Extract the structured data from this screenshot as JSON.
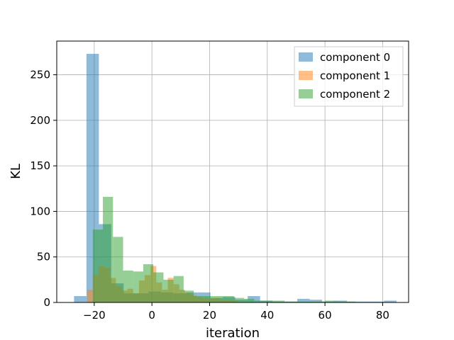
{
  "chart_data": {
    "type": "histogram",
    "xlabel": "iteration",
    "ylabel": "KL",
    "xlim": [
      -33,
      89
    ],
    "ylim": [
      0,
      287
    ],
    "x_ticks": [
      -20,
      0,
      20,
      40,
      60,
      80
    ],
    "y_ticks": [
      0,
      50,
      100,
      150,
      200,
      250
    ],
    "grid": true,
    "legend_position": "top-right",
    "series": [
      {
        "name": "component 0",
        "color": "#1f77b4",
        "opacity": 0.5,
        "bins": [
          {
            "x0": -27,
            "x1": -22.7,
            "count": 7
          },
          {
            "x0": -22.7,
            "x1": -18.4,
            "count": 273
          },
          {
            "x0": -18.4,
            "x1": -14.1,
            "count": 86
          },
          {
            "x0": -14.1,
            "x1": -9.8,
            "count": 21
          },
          {
            "x0": -9.8,
            "x1": -5.5,
            "count": 10
          },
          {
            "x0": -5.5,
            "x1": -1.2,
            "count": 10
          },
          {
            "x0": -1.2,
            "x1": 3.1,
            "count": 12
          },
          {
            "x0": 3.1,
            "x1": 7.4,
            "count": 11
          },
          {
            "x0": 7.4,
            "x1": 11.7,
            "count": 10
          },
          {
            "x0": 11.7,
            "x1": 16.0,
            "count": 11
          },
          {
            "x0": 16.0,
            "x1": 20.3,
            "count": 11
          },
          {
            "x0": 20.3,
            "x1": 24.6,
            "count": 5
          },
          {
            "x0": 24.6,
            "x1": 28.9,
            "count": 6
          },
          {
            "x0": 28.9,
            "x1": 33.2,
            "count": 3
          },
          {
            "x0": 33.2,
            "x1": 37.5,
            "count": 7
          },
          {
            "x0": 37.5,
            "x1": 41.8,
            "count": 2
          },
          {
            "x0": 41.8,
            "x1": 46.1,
            "count": 1
          },
          {
            "x0": 46.1,
            "x1": 50.4,
            "count": 1
          },
          {
            "x0": 50.4,
            "x1": 54.7,
            "count": 4
          },
          {
            "x0": 54.7,
            "x1": 59.0,
            "count": 3
          },
          {
            "x0": 59.0,
            "x1": 63.3,
            "count": 1
          },
          {
            "x0": 63.3,
            "x1": 67.6,
            "count": 2
          },
          {
            "x0": 67.6,
            "x1": 71.9,
            "count": 1
          },
          {
            "x0": 71.9,
            "x1": 76.2,
            "count": 1
          },
          {
            "x0": 76.2,
            "x1": 80.5,
            "count": 1
          },
          {
            "x0": 80.5,
            "x1": 84.8,
            "count": 2
          }
        ]
      },
      {
        "name": "component 1",
        "color": "#ff7f0e",
        "opacity": 0.5,
        "bins": [
          {
            "x0": -22.5,
            "x1": -20.5,
            "count": 14
          },
          {
            "x0": -20.5,
            "x1": -18.5,
            "count": 30
          },
          {
            "x0": -18.5,
            "x1": -16.5,
            "count": 40
          },
          {
            "x0": -16.5,
            "x1": -14.5,
            "count": 38
          },
          {
            "x0": -14.5,
            "x1": -12.5,
            "count": 27
          },
          {
            "x0": -12.5,
            "x1": -10.5,
            "count": 18
          },
          {
            "x0": -10.5,
            "x1": -8.5,
            "count": 13
          },
          {
            "x0": -8.5,
            "x1": -6.5,
            "count": 15
          },
          {
            "x0": -6.5,
            "x1": -4.5,
            "count": 10
          },
          {
            "x0": -4.5,
            "x1": -2.5,
            "count": 24
          },
          {
            "x0": -2.5,
            "x1": -0.5,
            "count": 30
          },
          {
            "x0": -0.5,
            "x1": 1.5,
            "count": 40
          },
          {
            "x0": 1.5,
            "x1": 3.5,
            "count": 22
          },
          {
            "x0": 3.5,
            "x1": 5.5,
            "count": 14
          },
          {
            "x0": 5.5,
            "x1": 7.5,
            "count": 27
          },
          {
            "x0": 7.5,
            "x1": 9.5,
            "count": 20
          },
          {
            "x0": 9.5,
            "x1": 11.5,
            "count": 14
          },
          {
            "x0": 11.5,
            "x1": 13.5,
            "count": 10
          },
          {
            "x0": 13.5,
            "x1": 15.5,
            "count": 8
          },
          {
            "x0": 15.5,
            "x1": 17.5,
            "count": 6
          },
          {
            "x0": 17.5,
            "x1": 19.5,
            "count": 5
          },
          {
            "x0": 19.5,
            "x1": 21.5,
            "count": 4
          },
          {
            "x0": 21.5,
            "x1": 23.5,
            "count": 5
          },
          {
            "x0": 23.5,
            "x1": 25.5,
            "count": 3
          },
          {
            "x0": 25.5,
            "x1": 27.5,
            "count": 3
          },
          {
            "x0": 27.5,
            "x1": 29.5,
            "count": 2
          }
        ]
      },
      {
        "name": "component 2",
        "color": "#2ca02c",
        "opacity": 0.5,
        "bins": [
          {
            "x0": -20.5,
            "x1": -17.0,
            "count": 80
          },
          {
            "x0": -17.0,
            "x1": -13.5,
            "count": 116
          },
          {
            "x0": -13.5,
            "x1": -10.0,
            "count": 72
          },
          {
            "x0": -10.0,
            "x1": -6.5,
            "count": 35
          },
          {
            "x0": -6.5,
            "x1": -3.0,
            "count": 34
          },
          {
            "x0": -3.0,
            "x1": 0.5,
            "count": 42
          },
          {
            "x0": 0.5,
            "x1": 4.0,
            "count": 33
          },
          {
            "x0": 4.0,
            "x1": 7.5,
            "count": 25
          },
          {
            "x0": 7.5,
            "x1": 11.0,
            "count": 29
          },
          {
            "x0": 11.0,
            "x1": 14.5,
            "count": 13
          },
          {
            "x0": 14.5,
            "x1": 18.0,
            "count": 7
          },
          {
            "x0": 18.0,
            "x1": 21.5,
            "count": 7
          },
          {
            "x0": 21.5,
            "x1": 25.0,
            "count": 7
          },
          {
            "x0": 25.0,
            "x1": 28.5,
            "count": 7
          },
          {
            "x0": 28.5,
            "x1": 32.0,
            "count": 5
          },
          {
            "x0": 32.0,
            "x1": 35.5,
            "count": 4
          },
          {
            "x0": 35.5,
            "x1": 39.0,
            "count": 2
          },
          {
            "x0": 39.0,
            "x1": 42.5,
            "count": 2
          },
          {
            "x0": 42.5,
            "x1": 46.0,
            "count": 2
          },
          {
            "x0": 46.0,
            "x1": 49.5,
            "count": 1
          },
          {
            "x0": 49.5,
            "x1": 53.0,
            "count": 1
          },
          {
            "x0": 53.0,
            "x1": 56.5,
            "count": 1
          },
          {
            "x0": 56.5,
            "x1": 60.0,
            "count": 1
          },
          {
            "x0": 60.0,
            "x1": 63.5,
            "count": 2
          },
          {
            "x0": 63.5,
            "x1": 67.0,
            "count": 1
          },
          {
            "x0": 67.0,
            "x1": 70.5,
            "count": 1
          }
        ]
      }
    ]
  }
}
